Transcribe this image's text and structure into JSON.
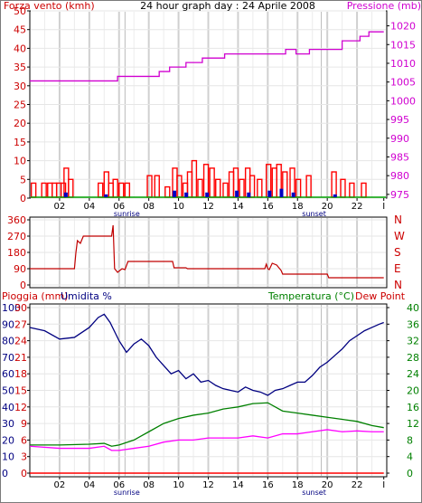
{
  "header": {
    "left_label": "Forza vento (kmh)",
    "center_label": "24 hour graph day : 24 Aprile 2008",
    "right_label": "Pressione (mb)"
  },
  "colors": {
    "wind": "#ff0000",
    "gust_low": "#0000c0",
    "pressure": "#d000d0",
    "direction": "#c00000",
    "humidity": "#000080",
    "temperature": "#008000",
    "dewpoint": "#ff00ff",
    "rain": "#ff0000",
    "rain_label": "#cc0000",
    "humidity_label": "#000080",
    "temp_label": "#008000",
    "dew_label": "#cc0000",
    "day_shading": "#dcdcdc"
  },
  "x_axis": {
    "tick_labels": [
      "02",
      "04",
      "06",
      "08",
      "10",
      "12",
      "14",
      "16",
      "18",
      "20",
      "22",
      "I"
    ],
    "sunrise_label": "sunrise",
    "sunset_label": "sunset"
  },
  "chart_data": [
    {
      "id": "wind_pressure",
      "type": "bar",
      "x_unit": "hour",
      "left_axis": {
        "label": "Forza vento (kmh)",
        "ticks": [
          "0",
          "5",
          "10",
          "15",
          "20",
          "25",
          "30",
          "35",
          "40",
          "45",
          "50"
        ],
        "ylim": [
          0,
          50
        ]
      },
      "right_axis": {
        "label": "Pressione (mb)",
        "ticks": [
          "975",
          "980",
          "985",
          "990",
          "995",
          "1000",
          "1005",
          "1010",
          "1015",
          "1020"
        ],
        "ylim": [
          974,
          1024
        ]
      },
      "series": [
        {
          "role": "wind",
          "type": "bar",
          "points": [
            [
              0.1,
              4
            ],
            [
              0.8,
              4
            ],
            [
              1.2,
              4
            ],
            [
              1.5,
              4
            ],
            [
              1.8,
              4
            ],
            [
              2.1,
              4
            ],
            [
              2.3,
              8
            ],
            [
              2.6,
              5
            ],
            [
              4.6,
              4
            ],
            [
              5.0,
              7
            ],
            [
              5.3,
              4
            ],
            [
              5.6,
              5
            ],
            [
              6.0,
              4
            ],
            [
              6.4,
              4
            ],
            [
              7.9,
              6
            ],
            [
              8.4,
              6
            ],
            [
              9.1,
              3
            ],
            [
              9.6,
              8
            ],
            [
              9.9,
              6
            ],
            [
              10.3,
              4
            ],
            [
              10.6,
              7
            ],
            [
              10.9,
              10
            ],
            [
              11.3,
              5
            ],
            [
              11.7,
              9
            ],
            [
              12.1,
              8
            ],
            [
              12.5,
              5
            ],
            [
              13.0,
              4
            ],
            [
              13.4,
              7
            ],
            [
              13.7,
              8
            ],
            [
              14.1,
              5
            ],
            [
              14.5,
              8
            ],
            [
              14.8,
              6
            ],
            [
              15.3,
              5
            ],
            [
              15.9,
              9
            ],
            [
              16.3,
              8
            ],
            [
              16.6,
              9
            ],
            [
              17.0,
              7
            ],
            [
              17.5,
              8
            ],
            [
              17.9,
              5
            ],
            [
              18.6,
              6
            ],
            [
              20.3,
              7
            ],
            [
              20.9,
              5
            ],
            [
              21.5,
              4
            ],
            [
              22.3,
              4
            ]
          ]
        },
        {
          "role": "gust_low",
          "type": "bar",
          "points": [
            [
              2.3,
              1.5
            ],
            [
              5.0,
              1.0
            ],
            [
              9.6,
              2.0
            ],
            [
              10.4,
              1.5
            ],
            [
              11.8,
              1.5
            ],
            [
              13.8,
              2.0
            ],
            [
              14.6,
              1.5
            ],
            [
              16.0,
              2.0
            ],
            [
              16.8,
              2.5
            ],
            [
              17.6,
              1.5
            ],
            [
              20.4,
              1.0
            ]
          ]
        },
        {
          "role": "pressure",
          "type": "line",
          "axis": "right",
          "points": [
            [
              0,
              1005.3
            ],
            [
              5.9,
              1005.3
            ],
            [
              5.9,
              1006.5
            ],
            [
              8.7,
              1006.5
            ],
            [
              8.7,
              1007.8
            ],
            [
              9.4,
              1007.8
            ],
            [
              9.4,
              1009
            ],
            [
              10.5,
              1009
            ],
            [
              10.5,
              1010.2
            ],
            [
              11.6,
              1010.2
            ],
            [
              11.6,
              1011.4
            ],
            [
              13.1,
              1011.4
            ],
            [
              13.1,
              1012.5
            ],
            [
              17.2,
              1012.5
            ],
            [
              17.2,
              1013.7
            ],
            [
              17.9,
              1013.7
            ],
            [
              17.9,
              1012.5
            ],
            [
              18.8,
              1012.5
            ],
            [
              18.8,
              1013.7
            ],
            [
              21.0,
              1013.7
            ],
            [
              21.0,
              1016
            ],
            [
              22.2,
              1016
            ],
            [
              22.2,
              1017.2
            ],
            [
              22.8,
              1017.2
            ],
            [
              22.8,
              1018.4
            ],
            [
              23.8,
              1018.4
            ]
          ]
        }
      ]
    },
    {
      "id": "wind_direction",
      "type": "line",
      "x_unit": "hour",
      "left_axis": {
        "ticks": [
          "0",
          "90",
          "180",
          "270",
          "360"
        ],
        "ylim": [
          0,
          360
        ]
      },
      "right_axis": {
        "ticks": [
          "N",
          "W",
          "S",
          "E",
          "N"
        ]
      },
      "series": [
        {
          "role": "direction",
          "points": [
            [
              0,
              90
            ],
            [
              3.0,
              90
            ],
            [
              3.1,
              180
            ],
            [
              3.2,
              245
            ],
            [
              3.4,
              230
            ],
            [
              3.6,
              270
            ],
            [
              5.5,
              270
            ],
            [
              5.6,
              330
            ],
            [
              5.7,
              90
            ],
            [
              5.9,
              70
            ],
            [
              6.2,
              90
            ],
            [
              6.4,
              85
            ],
            [
              6.6,
              130
            ],
            [
              9.6,
              130
            ],
            [
              9.7,
              95
            ],
            [
              10.5,
              95
            ],
            [
              10.6,
              90
            ],
            [
              15.8,
              90
            ],
            [
              15.9,
              115
            ],
            [
              16.0,
              90
            ],
            [
              16.1,
              85
            ],
            [
              16.3,
              120
            ],
            [
              16.6,
              110
            ],
            [
              16.9,
              80
            ],
            [
              17.0,
              60
            ],
            [
              20.0,
              60
            ],
            [
              20.1,
              40
            ],
            [
              23.8,
              40
            ]
          ]
        }
      ]
    },
    {
      "id": "rain_hum_temp",
      "type": "line",
      "x_unit": "hour",
      "labels": {
        "rain": "Pioggia (mm)",
        "humidity": "Umidita %",
        "temperature": "Temperatura (°C)",
        "dewpoint": "Dew Point"
      },
      "left_axis": {
        "ticks": [
          "0",
          "10",
          "20",
          "30",
          "40",
          "50",
          "60",
          "70",
          "80",
          "90",
          "100"
        ],
        "ylim": [
          0,
          100
        ]
      },
      "left_axis_inner": {
        "ticks": [
          "0",
          "3",
          "6",
          "9",
          "12",
          "15",
          "18",
          "21",
          "24",
          "27",
          "30"
        ],
        "ylim": [
          0,
          30
        ]
      },
      "right_axis": {
        "ticks": [
          "0",
          "4",
          "8",
          "12",
          "16",
          "20",
          "24",
          "28",
          "32",
          "36",
          "40"
        ],
        "ylim": [
          0,
          40
        ]
      },
      "series": [
        {
          "role": "humidity",
          "points": [
            [
              0,
              88
            ],
            [
              1.0,
              86
            ],
            [
              2.0,
              81
            ],
            [
              3.0,
              82
            ],
            [
              4.0,
              88
            ],
            [
              4.6,
              94
            ],
            [
              5.0,
              96
            ],
            [
              5.4,
              91
            ],
            [
              6.0,
              80
            ],
            [
              6.5,
              73
            ],
            [
              7.0,
              78
            ],
            [
              7.5,
              81
            ],
            [
              8.0,
              77
            ],
            [
              8.5,
              70
            ],
            [
              9.0,
              65
            ],
            [
              9.5,
              60
            ],
            [
              10.0,
              62
            ],
            [
              10.5,
              57
            ],
            [
              11.0,
              60
            ],
            [
              11.5,
              55
            ],
            [
              12.0,
              56
            ],
            [
              12.5,
              53
            ],
            [
              13.0,
              51
            ],
            [
              13.5,
              50
            ],
            [
              14.0,
              49
            ],
            [
              14.5,
              52
            ],
            [
              15.0,
              50
            ],
            [
              15.5,
              49
            ],
            [
              16.0,
              47
            ],
            [
              16.5,
              50
            ],
            [
              17.0,
              51
            ],
            [
              17.5,
              53
            ],
            [
              18.0,
              55
            ],
            [
              18.5,
              55
            ],
            [
              19.0,
              59
            ],
            [
              19.5,
              64
            ],
            [
              20.0,
              67
            ],
            [
              20.5,
              71
            ],
            [
              21.0,
              75
            ],
            [
              21.5,
              80
            ],
            [
              22.0,
              83
            ],
            [
              22.5,
              86
            ],
            [
              23.0,
              88
            ],
            [
              23.5,
              90
            ],
            [
              23.8,
              91
            ]
          ]
        },
        {
          "role": "temperature",
          "points": [
            [
              0,
              6.8
            ],
            [
              2.0,
              6.8
            ],
            [
              4.0,
              7.0
            ],
            [
              5.0,
              7.2
            ],
            [
              5.5,
              6.5
            ],
            [
              6.0,
              6.8
            ],
            [
              7.0,
              8.0
            ],
            [
              7.5,
              9.0
            ],
            [
              8.0,
              10.0
            ],
            [
              9.0,
              12.0
            ],
            [
              10.0,
              13.2
            ],
            [
              11.0,
              14.0
            ],
            [
              12.0,
              14.5
            ],
            [
              13.0,
              15.5
            ],
            [
              14.0,
              16.0
            ],
            [
              15.0,
              16.8
            ],
            [
              16.0,
              17.0
            ],
            [
              17.0,
              15.0
            ],
            [
              18.0,
              14.5
            ],
            [
              19.0,
              14.0
            ],
            [
              20.0,
              13.5
            ],
            [
              21.0,
              13.0
            ],
            [
              22.0,
              12.5
            ],
            [
              23.0,
              11.5
            ],
            [
              23.8,
              11.0
            ]
          ]
        },
        {
          "role": "dewpoint",
          "points": [
            [
              0,
              6.5
            ],
            [
              2.0,
              6.0
            ],
            [
              4.0,
              6.0
            ],
            [
              5.0,
              6.5
            ],
            [
              5.5,
              5.5
            ],
            [
              6.0,
              5.5
            ],
            [
              7.0,
              6.0
            ],
            [
              8.0,
              6.5
            ],
            [
              9.0,
              7.5
            ],
            [
              10.0,
              8.0
            ],
            [
              11.0,
              8.0
            ],
            [
              12.0,
              8.5
            ],
            [
              13.0,
              8.5
            ],
            [
              14.0,
              8.5
            ],
            [
              15.0,
              9.0
            ],
            [
              16.0,
              8.5
            ],
            [
              17.0,
              9.5
            ],
            [
              18.0,
              9.5
            ],
            [
              19.0,
              10.0
            ],
            [
              20.0,
              10.5
            ],
            [
              21.0,
              10.0
            ],
            [
              22.0,
              10.2
            ],
            [
              23.0,
              10.0
            ],
            [
              23.8,
              10.0
            ]
          ]
        },
        {
          "role": "rain",
          "points": [
            [
              0,
              0
            ],
            [
              23.8,
              0
            ]
          ]
        }
      ]
    }
  ]
}
